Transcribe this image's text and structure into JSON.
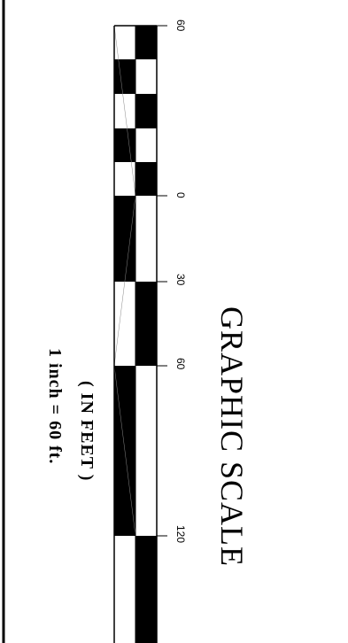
{
  "drawing": {
    "scale_title": "GRAPHIC  SCALE",
    "units_note": "( IN FEET )",
    "ratio_note": "1 inch = 60  ft."
  },
  "scale_bar": {
    "tick_values": [
      "60",
      "0",
      "30",
      "60",
      "120"
    ],
    "fill_color": "#000000",
    "background_color": "#ffffff"
  }
}
